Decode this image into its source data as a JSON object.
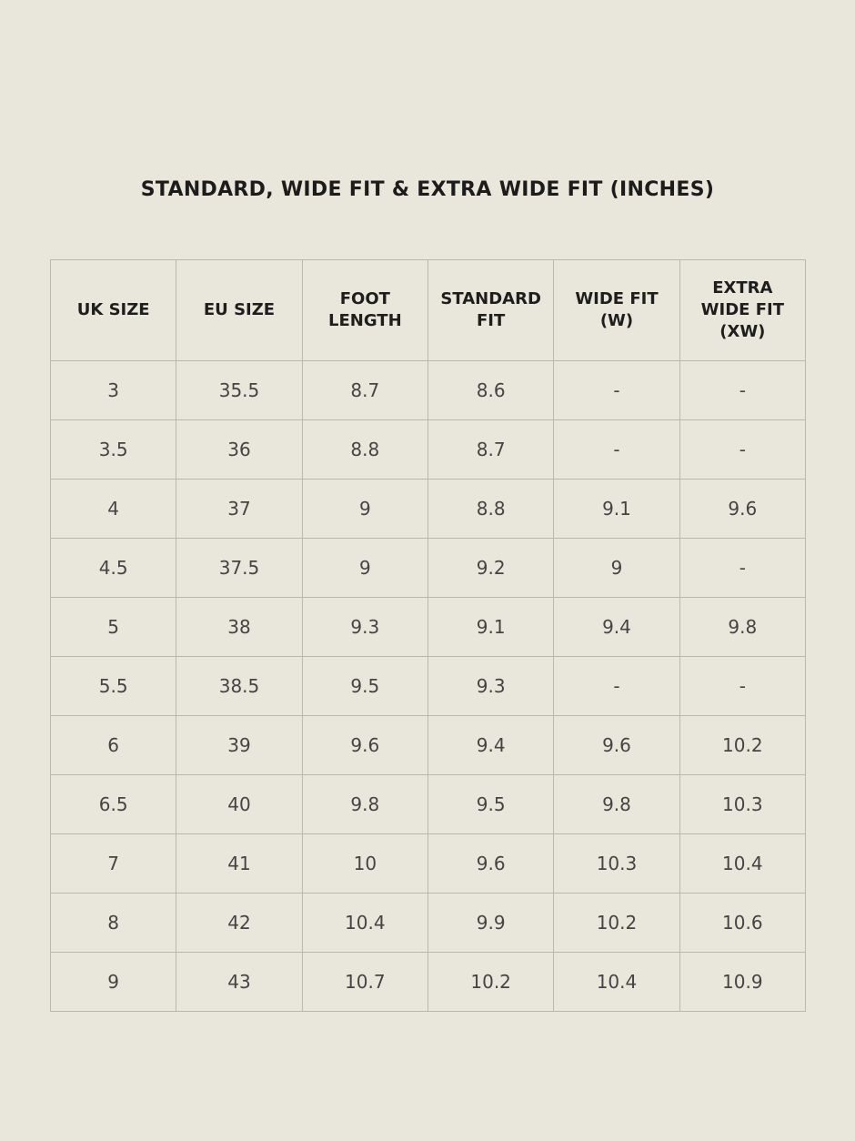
{
  "title": "STANDARD, WIDE FIT & EXTRA WIDE FIT (INCHES)",
  "colors": {
    "background": "#e9e6dc",
    "border": "#b9b7ae",
    "text": "#222222"
  },
  "headers": [
    [
      "UK SIZE"
    ],
    [
      "EU SIZE"
    ],
    [
      "FOOT",
      "LENGTH"
    ],
    [
      "STANDARD",
      "FIT"
    ],
    [
      "WIDE FIT",
      "(W)"
    ],
    [
      "EXTRA",
      "WIDE FIT",
      "(XW)"
    ]
  ],
  "rows": [
    [
      "3",
      "35.5",
      "8.7",
      "8.6",
      "-",
      "-"
    ],
    [
      "3.5",
      "36",
      "8.8",
      "8.7",
      "-",
      "-"
    ],
    [
      "4",
      "37",
      "9",
      "8.8",
      "9.1",
      "9.6"
    ],
    [
      "4.5",
      "37.5",
      "9",
      "9.2",
      "9",
      "-"
    ],
    [
      "5",
      "38",
      "9.3",
      "9.1",
      "9.4",
      "9.8"
    ],
    [
      "5.5",
      "38.5",
      "9.5",
      "9.3",
      "-",
      "-"
    ],
    [
      "6",
      "39",
      "9.6",
      "9.4",
      "9.6",
      "10.2"
    ],
    [
      "6.5",
      "40",
      "9.8",
      "9.5",
      "9.8",
      "10.3"
    ],
    [
      "7",
      "41",
      "10",
      "9.6",
      "10.3",
      "10.4"
    ],
    [
      "8",
      "42",
      "10.4",
      "9.9",
      "10.2",
      "10.6"
    ],
    [
      "9",
      "43",
      "10.7",
      "10.2",
      "10.4",
      "10.9"
    ]
  ]
}
